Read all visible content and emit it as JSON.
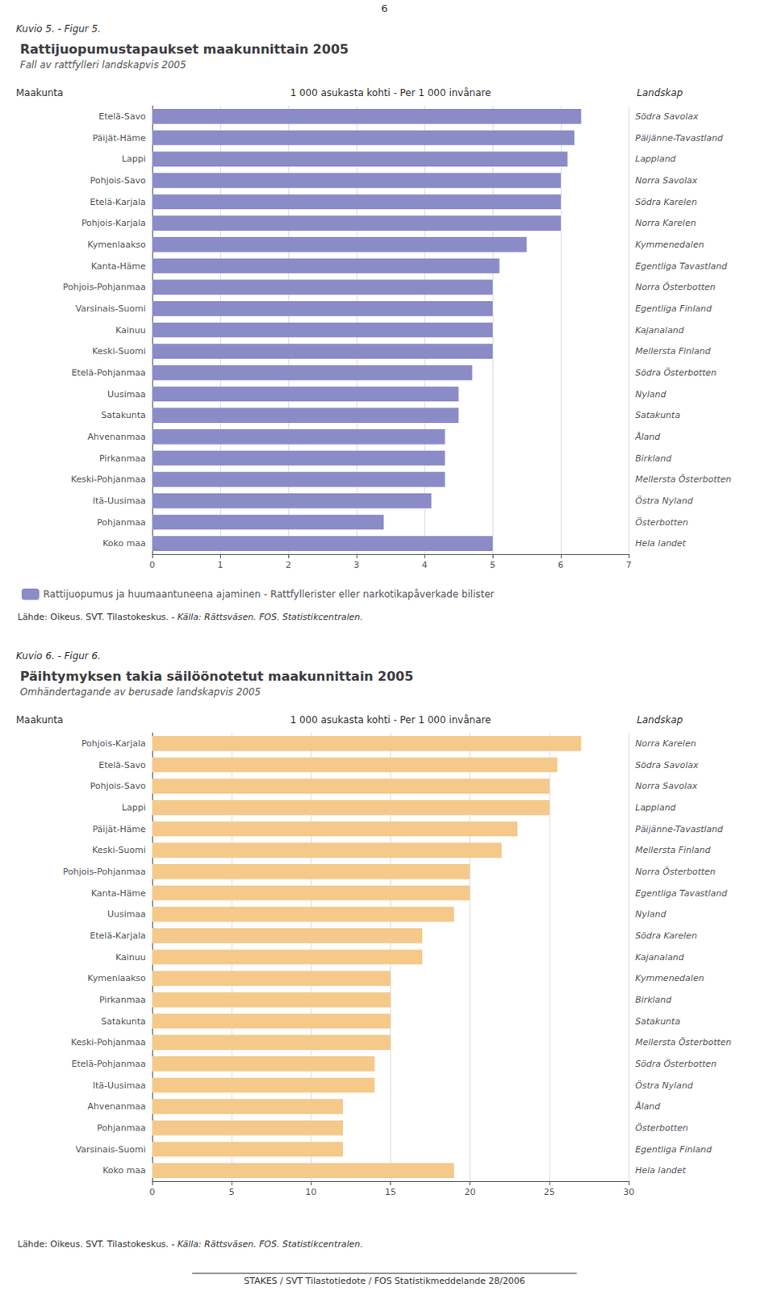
{
  "header": "6",
  "footer": "STAKES / SVT Tilastotiedote / FOS Statistikmeddelande 28/2006",
  "chart_data": [
    {
      "type": "bar",
      "orientation": "horizontal",
      "figure_label": "Kuvio 5. - Figur 5.",
      "title": "Rattijuopumustapaukset maakunnittain 2005",
      "subtitle": "Fall av rattfylleri landskapvis 2005",
      "y_label": "Maakunta",
      "x_label": "1 000 asukasta kohti - Per 1 000 invånare",
      "y2_label": "Landskap",
      "categories": [
        "Etelä-Savo",
        "Päijät-Häme",
        "Lappi",
        "Pohjois-Savo",
        "Etelä-Karjala",
        "Pohjois-Karjala",
        "Kymenlaakso",
        "Kanta-Häme",
        "Pohjois-Pohjanmaa",
        "Varsinais-Suomi",
        "Kainuu",
        "Keski-Suomi",
        "Etelä-Pohjanmaa",
        "Uusimaa",
        "Satakunta",
        "Ahvenanmaa",
        "Pirkanmaa",
        "Keski-Pohjanmaa",
        "Itä-Uusimaa",
        "Pohjanmaa",
        "Koko maa"
      ],
      "y2_categories": [
        "Södra Savolax",
        "Päijänne-Tavastland",
        "Lappland",
        "Norra Savolax",
        "Södra Karelen",
        "Norra Karelen",
        "Kymmenedalen",
        "Egentliga Tavastland",
        "Norra Österbotten",
        "Egentliga Finland",
        "Kajanaland",
        "Mellersta Finland",
        "Södra Österbotten",
        "Nyland",
        "Satakunta",
        "Åland",
        "Birkland",
        "Mellersta Österbotten",
        "Östra Nyland",
        "Österbotten",
        "Hela landet"
      ],
      "series": [
        {
          "name": "Rattijuopumus ja huumaantuneena ajaminen - Rattfyllerister eller narkotikapåverkade bilister",
          "color": "#8b8bc8",
          "values": [
            6.3,
            6.2,
            6.1,
            6.0,
            6.0,
            6.0,
            5.5,
            5.1,
            5.0,
            5.0,
            5.0,
            5.0,
            4.7,
            4.5,
            4.5,
            4.3,
            4.3,
            4.3,
            4.1,
            3.4,
            5.0
          ]
        }
      ],
      "xlim": [
        0,
        7
      ],
      "xticks": [
        0,
        1,
        2,
        3,
        4,
        5,
        6,
        7
      ],
      "grid": true,
      "legend": "bottom",
      "source": [
        "Lähde: Oikeus. SVT. Tilastokeskus. -",
        "Källa: Rättsväsen. FOS. Statistikcentralen."
      ]
    },
    {
      "type": "bar",
      "orientation": "horizontal",
      "figure_label": "Kuvio 6. - Figur 6.",
      "title": "Päihtymyksen takia säilöönotetut maakunnittain 2005",
      "subtitle": "Omhändertagande av berusade landskapvis 2005",
      "y_label": "Maakunta",
      "x_label": "1 000 asukasta kohti - Per 1 000 invånare",
      "y2_label": "Landskap",
      "categories": [
        "Pohjois-Karjala",
        "Etelä-Savo",
        "Pohjois-Savo",
        "Lappi",
        "Päijät-Häme",
        "Keski-Suomi",
        "Pohjois-Pohjanmaa",
        "Kanta-Häme",
        "Uusimaa",
        "Etelä-Karjala",
        "Kainuu",
        "Kymenlaakso",
        "Pirkanmaa",
        "Satakunta",
        "Keski-Pohjanmaa",
        "Etelä-Pohjanmaa",
        "Itä-Uusimaa",
        "Ahvenanmaa",
        "Pohjanmaa",
        "Varsinais-Suomi",
        "Koko maa"
      ],
      "y2_categories": [
        "Norra Karelen",
        "Södra Savolax",
        "Norra Savolax",
        "Lappland",
        "Päijänne-Tavastland",
        "Mellersta Finland",
        "Norra Österbotten",
        "Egentliga Tavastland",
        "Nyland",
        "Södra Karelen",
        "Kajanaland",
        "Kymmenedalen",
        "Birkland",
        "Satakunta",
        "Mellersta Österbotten",
        "Södra Österbotten",
        "Östra Nyland",
        "Åland",
        "Österbotten",
        "Egentliga Finland",
        "Hela landet"
      ],
      "values": [
        27.0,
        25.5,
        25.0,
        25.0,
        23.0,
        22.0,
        20.0,
        20.0,
        19.0,
        17.0,
        17.0,
        15.0,
        15.0,
        15.0,
        15.0,
        14.0,
        14.0,
        12.0,
        12.0,
        12.0,
        19.0
      ],
      "color": "#f5c98a",
      "xlim": [
        0,
        30
      ],
      "xticks": [
        0,
        5,
        10,
        15,
        20,
        25,
        30
      ],
      "grid": true,
      "source": [
        "Lähde: Oikeus. SVT. Tilastokeskus. -",
        "Källa: Rättsväsen. FOS. Statistikcentralen."
      ]
    }
  ]
}
